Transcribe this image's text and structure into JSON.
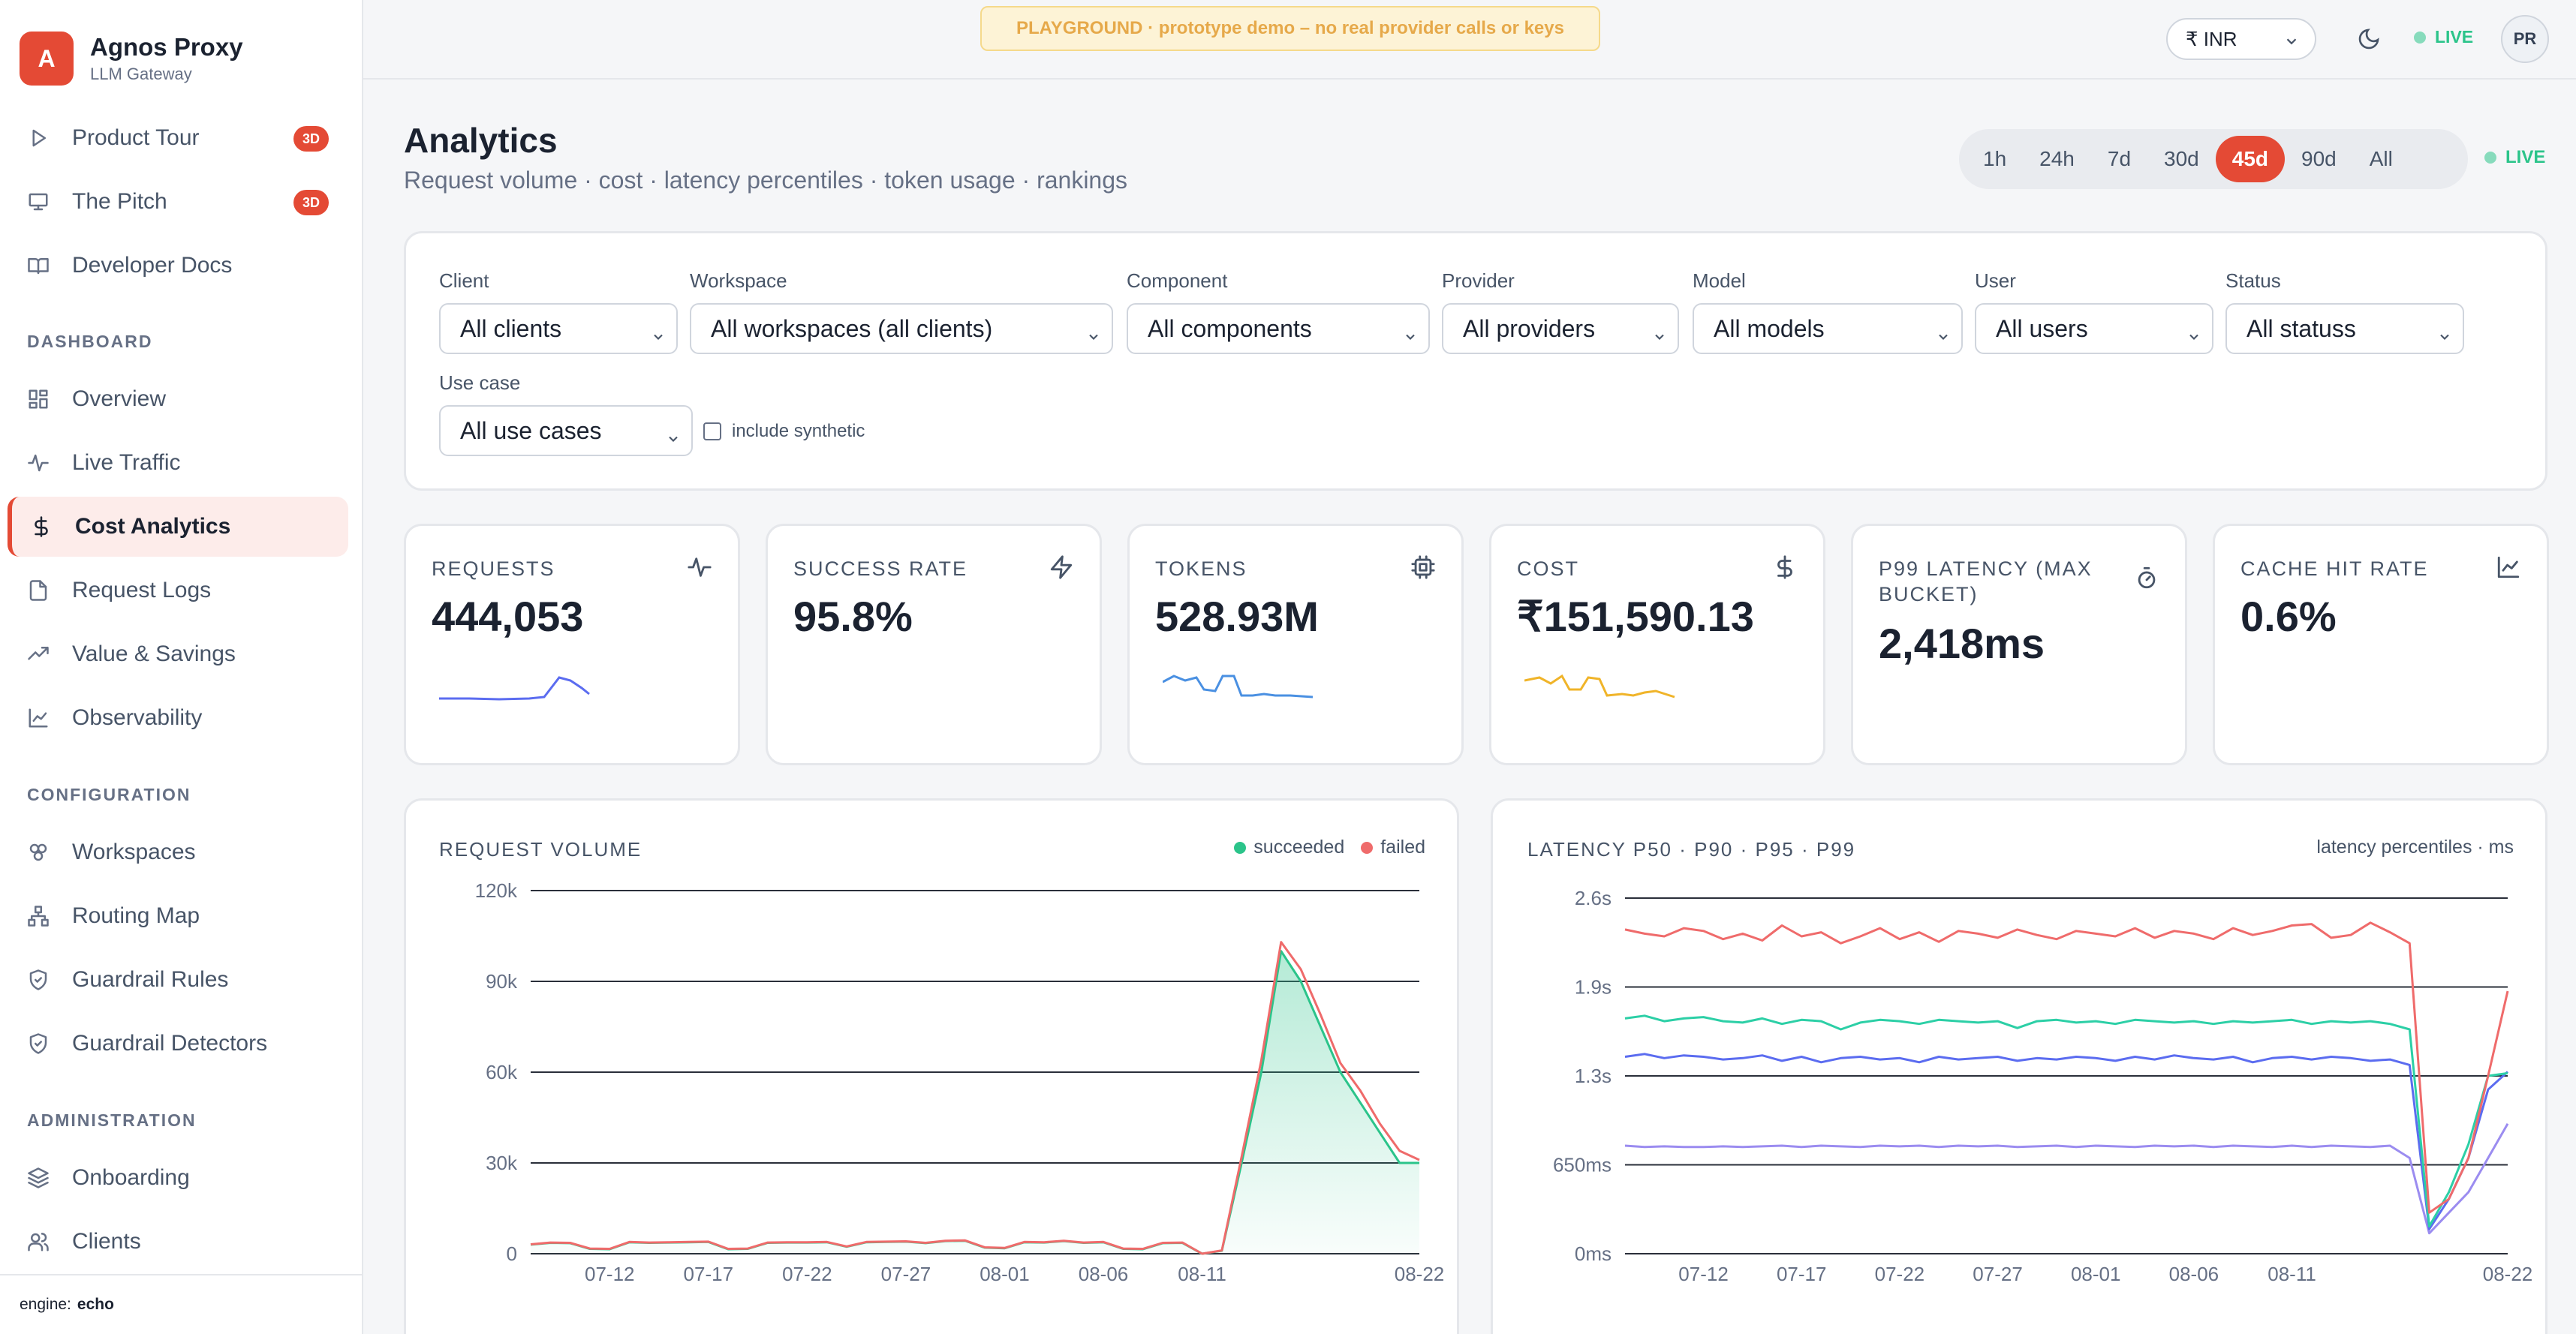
{
  "brand": {
    "initial": "A",
    "name": "Agnos Proxy",
    "subtitle": "LLM Gateway"
  },
  "sidebar": {
    "top_items": [
      {
        "label": "Product Tour",
        "icon": "play-icon",
        "badge": "3D"
      },
      {
        "label": "The Pitch",
        "icon": "presentation-icon",
        "badge": "3D"
      },
      {
        "label": "Developer Docs",
        "icon": "book-icon"
      }
    ],
    "sections": [
      {
        "heading": "DASHBOARD",
        "items": [
          {
            "label": "Overview",
            "icon": "grid-icon"
          },
          {
            "label": "Live Traffic",
            "icon": "pulse-icon"
          },
          {
            "label": "Cost Analytics",
            "icon": "dollar-icon",
            "active": true
          },
          {
            "label": "Request Logs",
            "icon": "file-icon"
          },
          {
            "label": "Value & Savings",
            "icon": "trending-up-icon"
          },
          {
            "label": "Observability",
            "icon": "line-chart-icon"
          }
        ]
      },
      {
        "heading": "CONFIGURATION",
        "items": [
          {
            "label": "Workspaces",
            "icon": "boxes-icon"
          },
          {
            "label": "Routing Map",
            "icon": "network-icon"
          },
          {
            "label": "Guardrail Rules",
            "icon": "shield-check-icon"
          },
          {
            "label": "Guardrail Detectors",
            "icon": "shield-check-icon"
          }
        ]
      },
      {
        "heading": "ADMINISTRATION",
        "items": [
          {
            "label": "Onboarding",
            "icon": "layers-icon"
          },
          {
            "label": "Clients",
            "icon": "users-icon"
          }
        ]
      }
    ],
    "engine_label": "engine:",
    "engine_value": "echo"
  },
  "topbar": {
    "banner": "PLAYGROUND · prototype demo – no real provider calls or keys",
    "currency": "₹ INR",
    "live": "LIVE",
    "avatar": "PR"
  },
  "header": {
    "title": "Analytics",
    "subtitle": "Request volume · cost · latency percentiles · token usage · rankings",
    "ranges": [
      "1h",
      "24h",
      "7d",
      "30d",
      "45d",
      "90d",
      "All"
    ],
    "active_range": "45d",
    "live": "LIVE"
  },
  "filters": {
    "client": {
      "label": "Client",
      "value": "All clients"
    },
    "workspace": {
      "label": "Workspace",
      "value": "All workspaces (all clients)"
    },
    "component": {
      "label": "Component",
      "value": "All components"
    },
    "provider": {
      "label": "Provider",
      "value": "All providers"
    },
    "model": {
      "label": "Model",
      "value": "All models"
    },
    "user": {
      "label": "User",
      "value": "All users"
    },
    "status": {
      "label": "Status",
      "value": "All statuss"
    },
    "use_case": {
      "label": "Use case",
      "value": "All use cases"
    },
    "synthetic_label": "include synthetic",
    "synthetic_checked": false
  },
  "stats": [
    {
      "label": "REQUESTS",
      "value": "444,053",
      "icon": "activity-icon",
      "spark_color": "#5b6cf0"
    },
    {
      "label": "SUCCESS RATE",
      "value": "95.8%",
      "icon": "zap-icon"
    },
    {
      "label": "TOKENS",
      "value": "528.93M",
      "icon": "cpu-icon",
      "spark_color": "#4a90e2"
    },
    {
      "label": "COST",
      "value": "₹151,590.13",
      "icon": "dollar-icon",
      "spark_color": "#f0b429"
    },
    {
      "label": "P99 LATENCY (MAX BUCKET)",
      "value": "2,418ms",
      "icon": "timer-icon"
    },
    {
      "label": "CACHE HIT RATE",
      "value": "0.6%",
      "icon": "line-chart-icon"
    }
  ],
  "colors": {
    "accent": "#e44a35",
    "succeeded": "#2bc48a",
    "failed": "#ef6b6b",
    "p50": "#9b8cf0",
    "p90": "#5b6cf0",
    "p95": "#2ccfa6",
    "p99": "#ef6b6b"
  },
  "chart_data": [
    {
      "type": "area",
      "title": "REQUEST VOLUME",
      "legend": [
        "succeeded",
        "failed"
      ],
      "yticks": [
        "0",
        "30k",
        "60k",
        "90k",
        "120k"
      ],
      "ylim": [
        0,
        120000
      ],
      "xticks": [
        "07-12",
        "07-17",
        "07-22",
        "07-27",
        "08-01",
        "08-06",
        "08-11",
        "08-22"
      ],
      "x": [
        "07-08",
        "07-09",
        "07-10",
        "07-11",
        "07-12",
        "07-13",
        "07-14",
        "07-15",
        "07-16",
        "07-17",
        "07-18",
        "07-19",
        "07-20",
        "07-21",
        "07-22",
        "07-23",
        "07-24",
        "07-25",
        "07-26",
        "07-27",
        "07-28",
        "07-29",
        "07-30",
        "07-31",
        "08-01",
        "08-02",
        "08-03",
        "08-04",
        "08-05",
        "08-06",
        "08-07",
        "08-08",
        "08-09",
        "08-10",
        "08-11",
        "08-12",
        "08-13",
        "08-14",
        "08-15",
        "08-16",
        "08-17",
        "08-18",
        "08-19",
        "08-20",
        "08-21",
        "08-22"
      ],
      "series": [
        {
          "name": "succeeded",
          "values": [
            3000,
            3600,
            3500,
            1600,
            1500,
            3800,
            3600,
            3700,
            3800,
            3900,
            1500,
            1600,
            3600,
            3700,
            3700,
            3800,
            2300,
            3800,
            3900,
            4000,
            3500,
            4200,
            4300,
            2000,
            1800,
            3800,
            3700,
            4200,
            3600,
            3800,
            1600,
            1500,
            3500,
            3600,
            0,
            1000,
            30000,
            60000,
            100000,
            90000,
            75000,
            60000,
            50000,
            40000,
            30000,
            30000
          ]
        },
        {
          "name": "failed",
          "values": [
            3100,
            3700,
            3600,
            1700,
            1600,
            3900,
            3700,
            3800,
            3900,
            4000,
            1600,
            1700,
            3700,
            3800,
            3800,
            3900,
            2400,
            3900,
            4000,
            4100,
            3600,
            4300,
            4400,
            2100,
            1900,
            3900,
            3800,
            4300,
            3700,
            3900,
            1700,
            1600,
            3600,
            3700,
            0,
            1100,
            32000,
            64000,
            103000,
            94000,
            79000,
            63000,
            54000,
            43000,
            34000,
            31000
          ]
        }
      ]
    },
    {
      "type": "line",
      "title": "LATENCY P50 · P90 · P95 · P99",
      "note": "latency percentiles · ms",
      "yticks": [
        "0ms",
        "650ms",
        "1.3s",
        "1.9s",
        "2.6s"
      ],
      "ylim": [
        0,
        2600
      ],
      "xticks": [
        "07-12",
        "07-17",
        "07-22",
        "07-27",
        "08-01",
        "08-06",
        "08-11",
        "08-22"
      ],
      "x": [
        "07-08",
        "07-09",
        "07-10",
        "07-11",
        "07-12",
        "07-13",
        "07-14",
        "07-15",
        "07-16",
        "07-17",
        "07-18",
        "07-19",
        "07-20",
        "07-21",
        "07-22",
        "07-23",
        "07-24",
        "07-25",
        "07-26",
        "07-27",
        "07-28",
        "07-29",
        "07-30",
        "07-31",
        "08-01",
        "08-02",
        "08-03",
        "08-04",
        "08-05",
        "08-06",
        "08-07",
        "08-08",
        "08-09",
        "08-10",
        "08-11",
        "08-12",
        "08-13",
        "08-14",
        "08-15",
        "08-16",
        "08-17",
        "08-18",
        "08-19",
        "08-20",
        "08-21",
        "08-22"
      ],
      "series": [
        {
          "values": [
            790,
            780,
            785,
            780,
            780,
            785,
            780,
            785,
            790,
            780,
            790,
            785,
            780,
            790,
            785,
            790,
            780,
            790,
            785,
            790,
            780,
            785,
            790,
            780,
            790,
            785,
            780,
            790,
            785,
            790,
            780,
            790,
            785,
            780,
            790,
            780,
            790,
            785,
            780,
            790,
            700,
            150,
            300,
            450,
            700,
            950
          ]
        },
        {
          "values": [
            1440,
            1460,
            1430,
            1450,
            1440,
            1420,
            1430,
            1450,
            1410,
            1440,
            1400,
            1430,
            1440,
            1420,
            1430,
            1400,
            1440,
            1420,
            1430,
            1440,
            1410,
            1430,
            1420,
            1440,
            1430,
            1410,
            1440,
            1420,
            1450,
            1430,
            1420,
            1440,
            1400,
            1430,
            1440,
            1420,
            1440,
            1430,
            1410,
            1420,
            1380,
            180,
            400,
            700,
            1200,
            1330
          ]
        },
        {
          "values": [
            1720,
            1740,
            1700,
            1720,
            1730,
            1700,
            1690,
            1720,
            1680,
            1710,
            1700,
            1640,
            1690,
            1710,
            1700,
            1680,
            1710,
            1700,
            1690,
            1700,
            1650,
            1700,
            1710,
            1690,
            1700,
            1680,
            1710,
            1700,
            1690,
            1700,
            1680,
            1700,
            1690,
            1700,
            1710,
            1680,
            1700,
            1690,
            1700,
            1680,
            1640,
            200,
            450,
            800,
            1300,
            1320
          ]
        },
        {
          "values": [
            2370,
            2340,
            2320,
            2380,
            2360,
            2300,
            2340,
            2290,
            2400,
            2320,
            2350,
            2270,
            2320,
            2380,
            2300,
            2350,
            2280,
            2360,
            2340,
            2310,
            2370,
            2330,
            2300,
            2360,
            2340,
            2320,
            2380,
            2310,
            2360,
            2340,
            2300,
            2380,
            2330,
            2360,
            2400,
            2410,
            2310,
            2330,
            2420,
            2350,
            2270,
            300,
            400,
            700,
            1300,
            1920
          ]
        }
      ]
    }
  ]
}
